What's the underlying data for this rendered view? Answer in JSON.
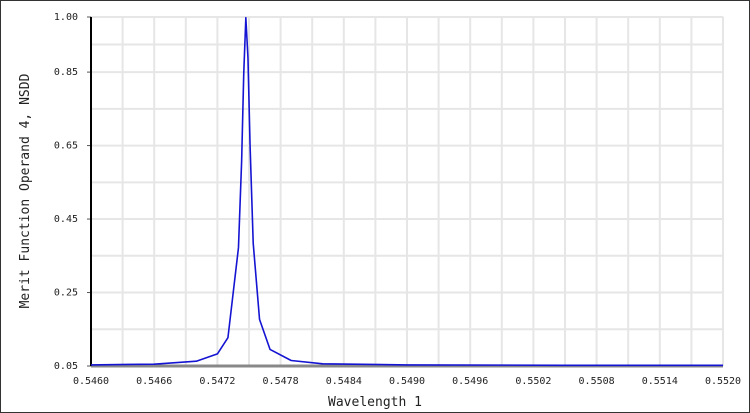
{
  "chart_data": {
    "type": "line",
    "xlabel": "Wavelength 1",
    "ylabel": "Merit Function Operand 4, NSDD",
    "x": [
      0.546,
      0.5466,
      0.547,
      0.5472,
      0.5473,
      0.5474,
      0.54743,
      0.54745,
      0.54747,
      0.54749,
      0.54751,
      0.54754,
      0.5476,
      0.5477,
      0.5479,
      0.5482,
      0.549,
      0.5505,
      0.552
    ],
    "series": [
      {
        "color": "#1414d2",
        "values": [
          0.053,
          0.055,
          0.063,
          0.083,
          0.127,
          0.372,
          0.607,
          0.845,
          0.998,
          0.89,
          0.652,
          0.384,
          0.177,
          0.095,
          0.065,
          0.056,
          0.053,
          0.052,
          0.052
        ]
      }
    ],
    "xlim": [
      0.546,
      0.552
    ],
    "xticks": [
      {
        "value": 0.546,
        "label": "0.5460"
      },
      0.5466,
      0.5472,
      0.5478,
      0.5484,
      {
        "value": 0.549,
        "label": "0.5490"
      },
      0.5496,
      0.5502,
      0.5508,
      0.5514,
      {
        "value": 0.552,
        "label": "0.5520"
      }
    ],
    "ylim": [
      0.05,
      1.0
    ],
    "yticks": [
      0.05,
      0.25,
      0.45,
      0.65,
      0.85,
      {
        "value": 1.0,
        "label": "1.00"
      }
    ],
    "grid": true
  }
}
